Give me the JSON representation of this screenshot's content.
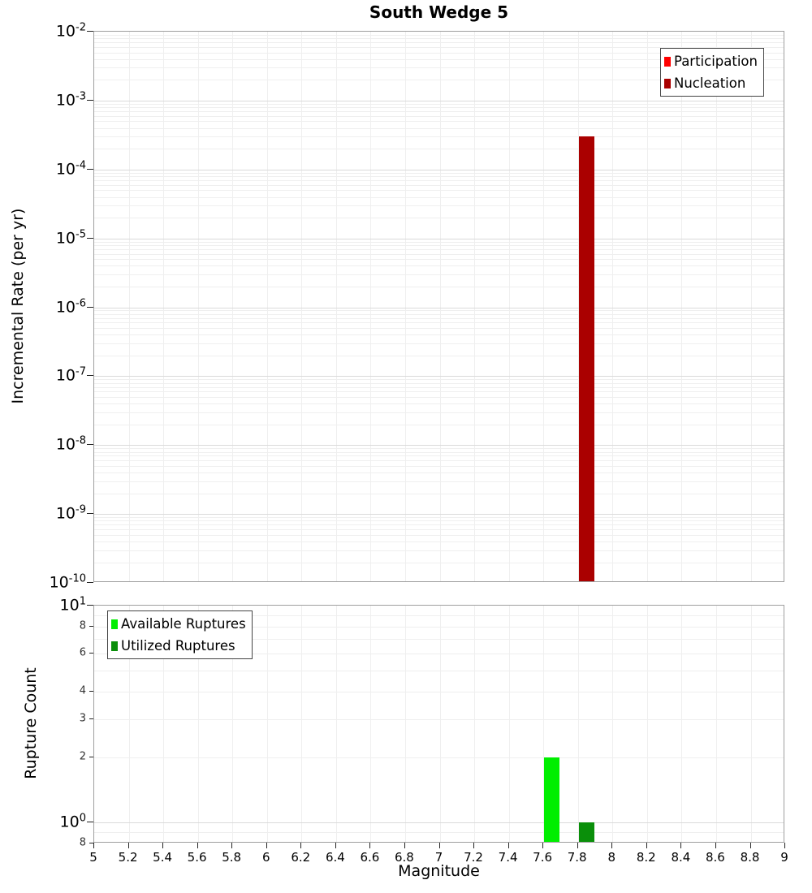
{
  "title": "South Wedge 5",
  "chart_data": [
    {
      "type": "bar",
      "panel": "incremental-rate",
      "title": "South Wedge 5",
      "ylabel": "Incremental Rate (per yr)",
      "yscale": "log",
      "ylim": [
        1e-10,
        0.01
      ],
      "xlim": [
        5,
        9
      ],
      "grid": true,
      "legend_position": "top-right",
      "bar_width_mag": 0.09,
      "yticks": [
        {
          "value": 0.01,
          "label": "10^-2",
          "major": true
        },
        {
          "value": 0.001,
          "label": "10^-3",
          "major": true
        },
        {
          "value": 0.0001,
          "label": "10^-4",
          "major": true
        },
        {
          "value": 1e-05,
          "label": "10^-5",
          "major": true
        },
        {
          "value": 1e-06,
          "label": "10^-6",
          "major": true
        },
        {
          "value": 1e-07,
          "label": "10^-7",
          "major": true
        },
        {
          "value": 1e-08,
          "label": "10^-8",
          "major": true
        },
        {
          "value": 1e-09,
          "label": "10^-9",
          "major": true
        },
        {
          "value": 1e-10,
          "label": "10^-10",
          "major": true
        }
      ],
      "series": [
        {
          "name": "Participation",
          "color": "#ff0000",
          "bars": []
        },
        {
          "name": "Nucleation",
          "color": "#aa0000",
          "bars": [
            {
              "magnitude": 7.85,
              "value": 0.0003
            }
          ]
        }
      ]
    },
    {
      "type": "bar",
      "panel": "rupture-count",
      "ylabel": "Rupture Count",
      "xlabel": "Magnitude",
      "yscale": "log",
      "ylim": [
        0.8,
        10
      ],
      "xlim": [
        5,
        9
      ],
      "grid": true,
      "legend_position": "top-left",
      "bar_width_mag": 0.09,
      "yticks": [
        {
          "value": 10,
          "label": "10^1",
          "major": true
        },
        {
          "value": 8,
          "label": "8",
          "major": false
        },
        {
          "value": 6,
          "label": "6",
          "major": false
        },
        {
          "value": 4,
          "label": "4",
          "major": false
        },
        {
          "value": 3,
          "label": "3",
          "major": false
        },
        {
          "value": 2,
          "label": "2",
          "major": false
        },
        {
          "value": 1,
          "label": "10^0",
          "major": true
        },
        {
          "value": 0.8,
          "label": "8",
          "major": false
        }
      ],
      "xticks": [
        5,
        5.2,
        5.4,
        5.6,
        5.8,
        6,
        6.2,
        6.4,
        6.6,
        6.8,
        7,
        7.2,
        7.4,
        7.6,
        7.8,
        8,
        8.2,
        8.4,
        8.6,
        8.8,
        9
      ],
      "xtick_labels": [
        "5",
        "5.2",
        "5.4",
        "5.6",
        "5.8",
        "6",
        "6.2",
        "6.4",
        "6.6",
        "6.8",
        "7",
        "7.2",
        "7.4",
        "7.6",
        "7.8",
        "8",
        "8.2",
        "8.4",
        "8.6",
        "8.8",
        "9"
      ],
      "series": [
        {
          "name": "Available Ruptures",
          "color": "#00ee00",
          "bars": [
            {
              "magnitude": 7.65,
              "value": 2
            }
          ]
        },
        {
          "name": "Utilized Ruptures",
          "color": "#0a8f0a",
          "bars": [
            {
              "magnitude": 7.85,
              "value": 1
            }
          ]
        }
      ]
    }
  ]
}
